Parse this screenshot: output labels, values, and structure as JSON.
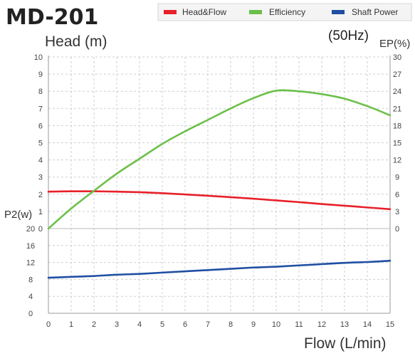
{
  "chart_data": {
    "type": "line",
    "title": "MD-201",
    "frequency_label": "(50Hz)",
    "xlabel": "Flow (L/min)",
    "ylabel_head": "Head (m)",
    "ylabel_ep": "EP(%)",
    "ylabel_p2": "P2(w)",
    "x_ticks": [
      "0",
      "1",
      "2",
      "3",
      "4",
      "5",
      "6",
      "7",
      "8",
      "9",
      "10",
      "11",
      "12",
      "13",
      "14",
      "15"
    ],
    "head_ticks": [
      "0",
      "1",
      "2",
      "3",
      "4",
      "5",
      "6",
      "7",
      "8",
      "9",
      "10"
    ],
    "ep_ticks": [
      "0",
      "3",
      "6",
      "9",
      "12",
      "15",
      "18",
      "21",
      "24",
      "27",
      "30"
    ],
    "p2_ticks": [
      "0",
      "4",
      "8",
      "12",
      "16",
      "20"
    ],
    "xlim": [
      0,
      15
    ],
    "head_lim": [
      0,
      10
    ],
    "ep_lim": [
      0,
      30
    ],
    "p2_lim": [
      0,
      20
    ],
    "grid": true,
    "legend_position": "top-right",
    "series": [
      {
        "name": "Head&Flow",
        "color": "#e8202a",
        "axis": "head",
        "x": [
          0,
          1,
          2,
          3,
          4,
          5,
          6,
          7,
          8,
          9,
          10,
          11,
          12,
          13,
          14,
          15
        ],
        "values": [
          2.15,
          2.17,
          2.17,
          2.15,
          2.12,
          2.06,
          1.99,
          1.91,
          1.83,
          1.74,
          1.64,
          1.54,
          1.43,
          1.33,
          1.23,
          1.13
        ]
      },
      {
        "name": "Efficiency",
        "color": "#6cc04a",
        "axis": "ep",
        "x": [
          0,
          1,
          2,
          3,
          4,
          5,
          6,
          7,
          8,
          9,
          10,
          11,
          12,
          13,
          14,
          15
        ],
        "values": [
          0,
          3.5,
          6.6,
          9.6,
          12.2,
          14.8,
          17.0,
          19.0,
          21.0,
          22.8,
          24.1,
          24.0,
          23.5,
          22.7,
          21.4,
          19.8
        ]
      },
      {
        "name": "Shaft Power",
        "color": "#1f4fa3",
        "axis": "p2",
        "x": [
          0,
          1,
          2,
          3,
          4,
          5,
          6,
          7,
          8,
          9,
          10,
          11,
          12,
          13,
          14,
          15
        ],
        "values": [
          8.4,
          8.6,
          8.8,
          9.1,
          9.3,
          9.6,
          9.9,
          10.2,
          10.5,
          10.8,
          11.0,
          11.3,
          11.6,
          11.9,
          12.1,
          12.4
        ]
      }
    ]
  }
}
